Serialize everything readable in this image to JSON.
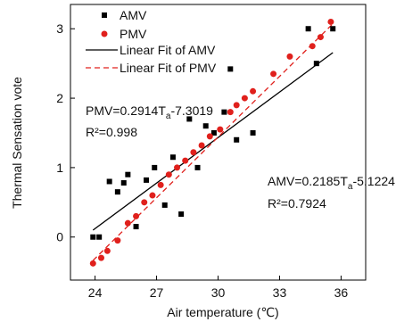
{
  "chart_data": {
    "type": "scatter",
    "xlabel": "Air temperature (℃)",
    "ylabel": "Thermal Sensation vote",
    "xlim": [
      22.8,
      37.2
    ],
    "ylim": [
      -0.62,
      3.35
    ],
    "xticks": [
      24,
      27,
      30,
      33,
      36
    ],
    "yticks": [
      0,
      1,
      2,
      3
    ],
    "legend_position": "top-left",
    "grid": false,
    "legend": {
      "amv": "AMV",
      "pmv": "PMV",
      "fit_amv": "Linear Fit of AMV",
      "fit_pmv": "Linear Fit of PMV"
    },
    "annotations": {
      "pmv_eq_a": "PMV=0.2914T",
      "pmv_eq_sub": "a",
      "pmv_eq_b": "-7.3019",
      "pmv_r2": "R²=0.998",
      "amv_eq_a": "AMV=0.2185T",
      "amv_eq_sub": "a",
      "amv_eq_b": "-5.1224",
      "amv_r2": "R²=0.7924"
    },
    "series": [
      {
        "name": "AMV",
        "marker": "square",
        "color": "#000000",
        "points": [
          [
            23.9,
            0.0
          ],
          [
            24.2,
            0.0
          ],
          [
            24.7,
            0.8
          ],
          [
            25.1,
            0.65
          ],
          [
            25.4,
            0.78
          ],
          [
            25.6,
            0.9
          ],
          [
            26.0,
            0.15
          ],
          [
            26.5,
            0.82
          ],
          [
            26.9,
            1.0
          ],
          [
            27.4,
            0.46
          ],
          [
            27.8,
            1.15
          ],
          [
            28.2,
            0.33
          ],
          [
            28.6,
            1.7
          ],
          [
            29.0,
            1.0
          ],
          [
            29.4,
            1.6
          ],
          [
            29.8,
            1.5
          ],
          [
            30.3,
            1.8
          ],
          [
            30.6,
            2.42
          ],
          [
            30.9,
            1.4
          ],
          [
            31.7,
            1.5
          ],
          [
            34.4,
            3.0
          ],
          [
            34.8,
            2.5
          ],
          [
            35.6,
            3.0
          ]
        ]
      },
      {
        "name": "PMV",
        "marker": "circle",
        "color": "#e0201c",
        "points": [
          [
            23.9,
            -0.38
          ],
          [
            24.3,
            -0.3
          ],
          [
            24.6,
            -0.2
          ],
          [
            25.1,
            -0.05
          ],
          [
            25.6,
            0.2
          ],
          [
            26.0,
            0.3
          ],
          [
            26.4,
            0.5
          ],
          [
            26.8,
            0.6
          ],
          [
            27.2,
            0.75
          ],
          [
            27.6,
            0.9
          ],
          [
            28.0,
            1.0
          ],
          [
            28.4,
            1.1
          ],
          [
            28.8,
            1.22
          ],
          [
            29.2,
            1.32
          ],
          [
            29.6,
            1.45
          ],
          [
            30.1,
            1.55
          ],
          [
            30.6,
            1.8
          ],
          [
            30.9,
            1.9
          ],
          [
            31.3,
            2.0
          ],
          [
            31.7,
            2.1
          ],
          [
            32.7,
            2.35
          ],
          [
            33.5,
            2.6
          ],
          [
            34.6,
            2.75
          ],
          [
            35.0,
            2.88
          ],
          [
            35.5,
            3.1
          ]
        ]
      }
    ],
    "fits": [
      {
        "name": "Linear Fit of AMV",
        "slope": 0.2185,
        "intercept": -5.1224,
        "x_range": [
          23.9,
          35.6
        ],
        "color": "#000000",
        "dashed": false
      },
      {
        "name": "Linear Fit of PMV",
        "slope": 0.2914,
        "intercept": -7.3019,
        "x_range": [
          23.9,
          35.6
        ],
        "color": "#e0201c",
        "dashed": true
      }
    ]
  }
}
